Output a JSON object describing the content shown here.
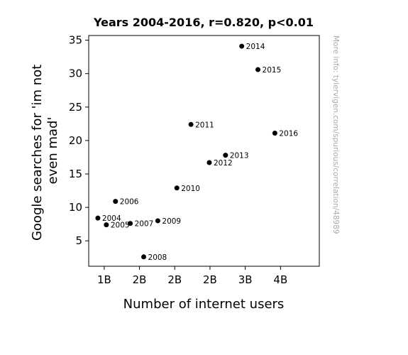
{
  "chart_data": {
    "type": "scatter",
    "title": "Years 2004-2016, r=0.820, p<0.01",
    "xlabel": "Number of internet users",
    "ylabel_lines": [
      "Google searches for 'im not",
      "even mad'"
    ],
    "xlim": [
      0.78,
      4.05
    ],
    "ylim": [
      1.2,
      35.7
    ],
    "x_ticks": [
      {
        "value": 1.0,
        "label": "1B"
      },
      {
        "value": 1.5,
        "label": "2B"
      },
      {
        "value": 2.0,
        "label": "2B"
      },
      {
        "value": 2.5,
        "label": "2B"
      },
      {
        "value": 3.0,
        "label": "3B"
      },
      {
        "value": 3.5,
        "label": "4B"
      }
    ],
    "y_ticks": [
      5,
      10,
      15,
      20,
      25,
      30,
      35
    ],
    "points": [
      {
        "label": "2004",
        "x": 0.91,
        "y": 8.4
      },
      {
        "label": "2005",
        "x": 1.03,
        "y": 7.4
      },
      {
        "label": "2006",
        "x": 1.16,
        "y": 10.9
      },
      {
        "label": "2007",
        "x": 1.37,
        "y": 7.6
      },
      {
        "label": "2008",
        "x": 1.56,
        "y": 2.6
      },
      {
        "label": "2009",
        "x": 1.76,
        "y": 8.0
      },
      {
        "label": "2010",
        "x": 2.03,
        "y": 12.9
      },
      {
        "label": "2011",
        "x": 2.23,
        "y": 22.4
      },
      {
        "label": "2012",
        "x": 2.49,
        "y": 16.7
      },
      {
        "label": "2013",
        "x": 2.72,
        "y": 17.8
      },
      {
        "label": "2014",
        "x": 2.95,
        "y": 34.1
      },
      {
        "label": "2015",
        "x": 3.18,
        "y": 30.6
      },
      {
        "label": "2016",
        "x": 3.42,
        "y": 21.1
      }
    ],
    "marker_color": "#000000",
    "grid": false,
    "watermark": "More info: tylervigen.com/spurious/correlation/48989"
  }
}
